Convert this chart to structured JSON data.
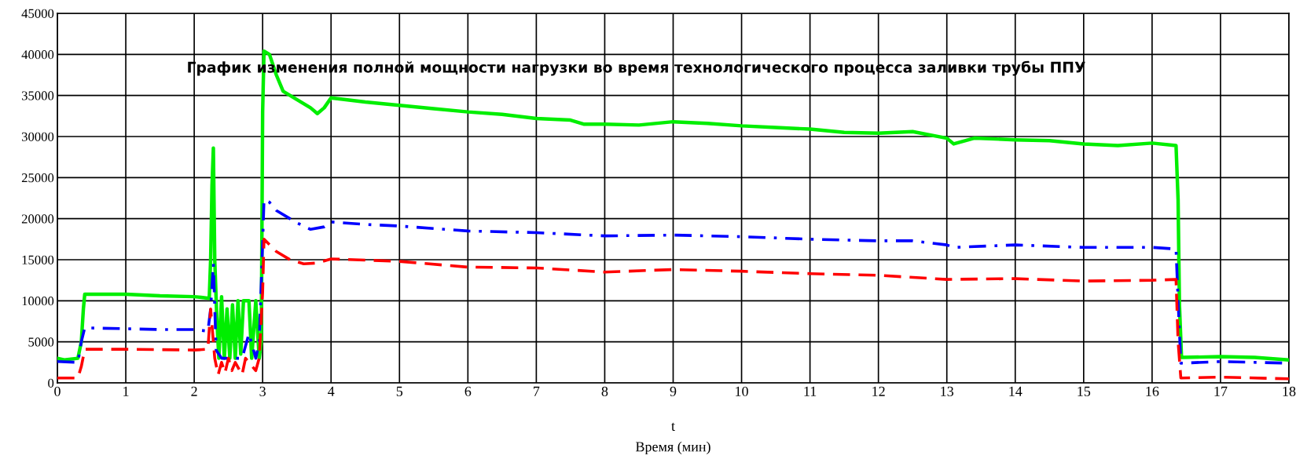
{
  "chart_data": {
    "type": "line",
    "title": "График изменения полной мощности нагрузки во время технологического процесса заливки трубы ППУ",
    "xlabel": "t\nВремя (мин)",
    "xlim": [
      0,
      18
    ],
    "xticks": [
      0,
      1,
      2,
      3,
      4,
      5,
      6,
      7,
      8,
      9,
      10,
      11,
      12,
      13,
      14,
      15,
      16,
      17,
      18
    ],
    "ylim": [
      0,
      45000
    ],
    "yticks": [
      0,
      5000,
      10000,
      15000,
      20000,
      25000,
      30000,
      35000,
      40000,
      45000
    ],
    "grid": true,
    "marker": "none",
    "series": [
      {
        "color": "#00ee00",
        "line_style": "solid",
        "x": [
          0,
          0.1,
          0.3,
          0.35,
          0.38,
          0.4,
          1,
          1.5,
          2,
          2.22,
          2.24,
          2.26,
          2.28,
          2.3,
          2.33,
          2.36,
          2.4,
          2.44,
          2.48,
          2.52,
          2.56,
          2.6,
          2.64,
          2.68,
          2.72,
          2.8,
          2.84,
          2.9,
          2.95,
          2.98,
          3.0,
          3.02,
          3.1,
          3.2,
          3.3,
          3.5,
          3.7,
          3.8,
          3.9,
          4.0,
          4.5,
          5,
          5.5,
          6,
          6.5,
          7,
          7.5,
          7.7,
          8,
          8.5,
          9,
          9.5,
          10,
          10.5,
          11,
          11.5,
          12,
          12.5,
          13,
          13.1,
          13.4,
          14,
          14.5,
          15,
          15.5,
          16,
          16.35,
          16.38,
          16.4,
          16.43,
          17,
          17.5,
          18
        ],
        "values": [
          3000,
          2800,
          3000,
          5000,
          9000,
          10800,
          10800,
          10600,
          10500,
          10300,
          15000,
          24000,
          28600,
          15000,
          8000,
          3000,
          10500,
          3000,
          9000,
          3000,
          9500,
          3000,
          10000,
          3500,
          10000,
          10000,
          3000,
          10000,
          3000,
          5000,
          33000,
          40400,
          40000,
          37500,
          35500,
          34500,
          33500,
          32800,
          33500,
          34700,
          34200,
          33800,
          33400,
          33000,
          32700,
          32200,
          32000,
          31500,
          31500,
          31400,
          31800,
          31600,
          31300,
          31100,
          30900,
          30500,
          30400,
          30600,
          29800,
          29100,
          29800,
          29600,
          29500,
          29100,
          28900,
          29200,
          28900,
          22300,
          9500,
          3100,
          3200,
          3100,
          2800
        ]
      },
      {
        "color": "#0000ff",
        "line_style": "dashdot",
        "x": [
          0,
          0.3,
          0.35,
          0.4,
          1,
          1.5,
          2,
          2.2,
          2.24,
          2.28,
          2.32,
          2.4,
          2.5,
          2.6,
          2.7,
          2.8,
          2.9,
          2.95,
          3.0,
          3.02,
          3.1,
          3.2,
          3.5,
          3.7,
          3.9,
          4,
          4.5,
          5,
          6,
          7,
          8,
          9,
          10,
          11,
          12,
          12.5,
          13,
          13.1,
          14,
          15,
          16,
          16.35,
          16.38,
          16.42,
          17,
          18
        ],
        "values": [
          2600,
          2500,
          5000,
          6700,
          6600,
          6500,
          6500,
          6300,
          9000,
          14500,
          4000,
          3000,
          3000,
          3000,
          3000,
          6000,
          3000,
          5000,
          17000,
          22300,
          22000,
          21000,
          19500,
          18700,
          19000,
          19600,
          19300,
          19100,
          18500,
          18300,
          17900,
          18000,
          17800,
          17500,
          17300,
          17300,
          16800,
          16500,
          16800,
          16500,
          16500,
          16300,
          10000,
          2400,
          2600,
          2400
        ]
      },
      {
        "color": "#ff0000",
        "line_style": "dashed",
        "x": [
          0,
          0.3,
          0.35,
          0.4,
          1,
          2,
          2.2,
          2.24,
          2.27,
          2.3,
          2.35,
          2.4,
          2.45,
          2.5,
          2.55,
          2.6,
          2.7,
          2.75,
          2.9,
          2.95,
          3.0,
          3.02,
          3.2,
          3.4,
          3.6,
          3.8,
          4,
          5,
          6,
          7,
          8,
          9,
          10,
          11,
          12,
          13,
          14,
          15,
          16,
          16.35,
          16.38,
          16.42,
          17,
          18
        ],
        "values": [
          600,
          600,
          2000,
          4100,
          4100,
          4000,
          4100,
          9000,
          6000,
          3000,
          1000,
          2500,
          1200,
          3000,
          1500,
          2500,
          1000,
          3000,
          1500,
          3000,
          11000,
          17500,
          16000,
          15000,
          14500,
          14600,
          15100,
          14800,
          14100,
          14000,
          13500,
          13800,
          13600,
          13300,
          13100,
          12600,
          12700,
          12400,
          12500,
          12600,
          5000,
          600,
          700,
          500
        ]
      }
    ]
  }
}
